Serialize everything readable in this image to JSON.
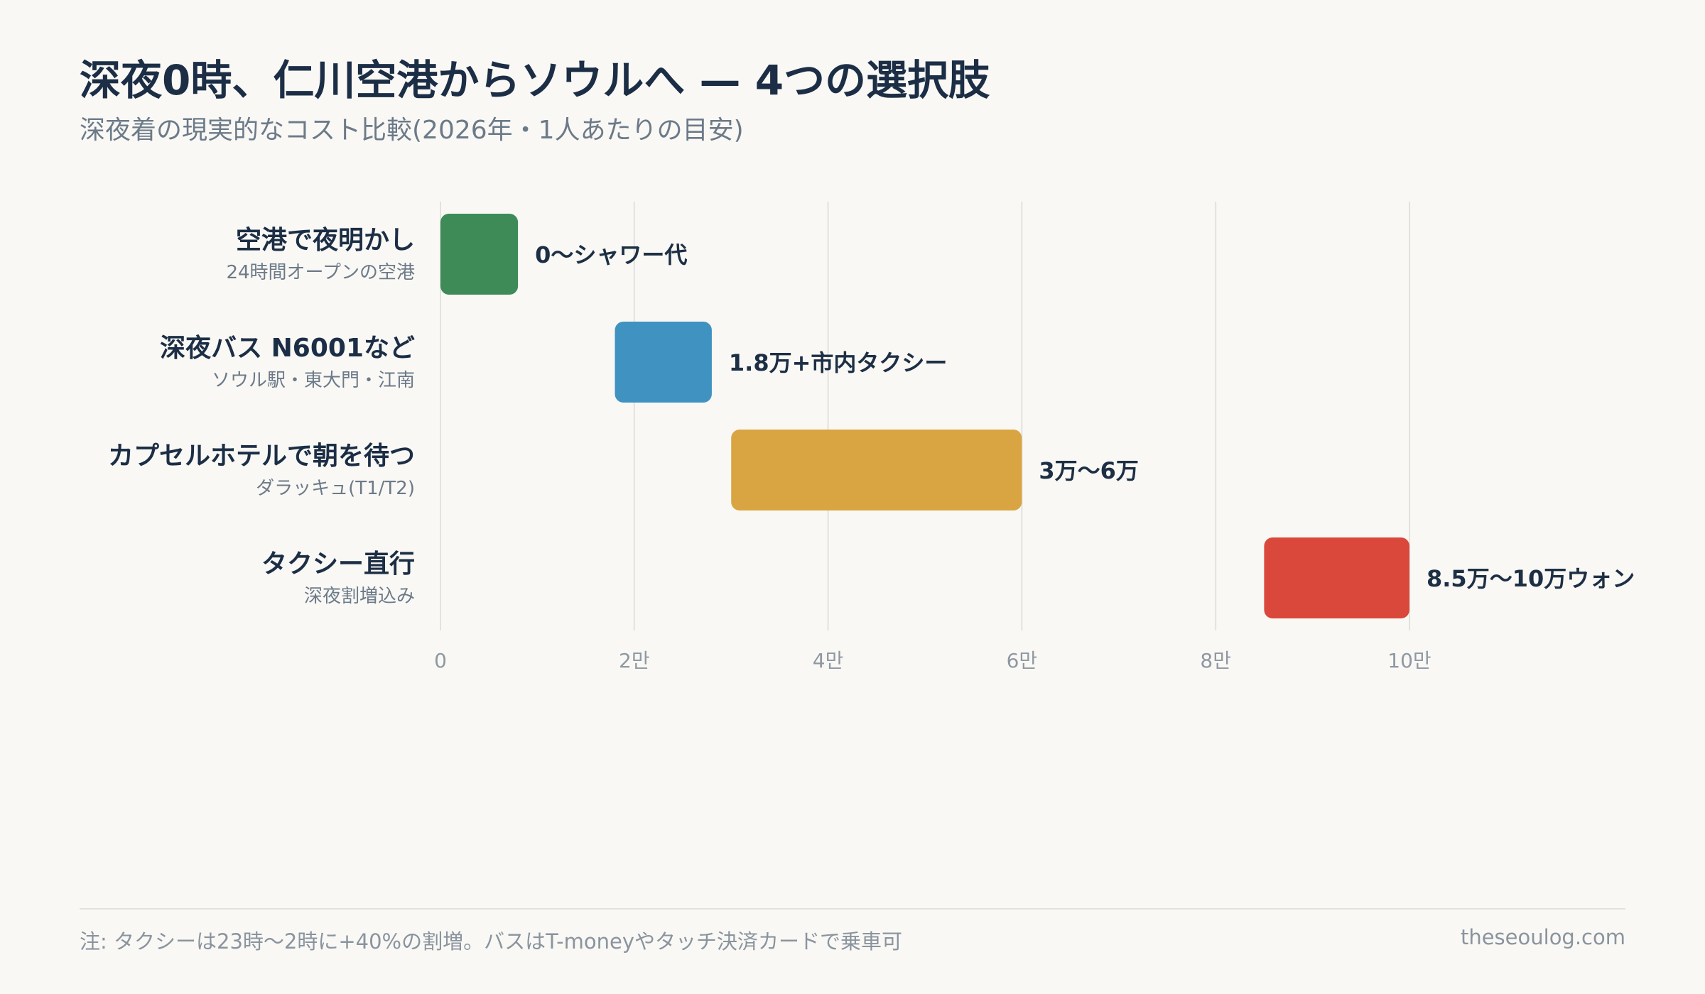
{
  "header": {
    "title": "深夜0時、仁川空港からソウルへ — 4つの選択肢",
    "subtitle": "深夜着の現実的なコスト比較(2026年・1人あたりの目安)"
  },
  "chart_data": {
    "type": "bar",
    "orientation": "horizontal",
    "subtype": "range",
    "categories": [
      "空港で夜明かし",
      "深夜バス N6001など",
      "カプセルホテルで朝を待つ",
      "タクシー直行"
    ],
    "sublabels": [
      "24時間オープンの空港",
      "ソウル駅・東大門・江南",
      "ダラッキュ(T1/T2)",
      "深夜割増込み"
    ],
    "ranges": [
      [
        0,
        8000
      ],
      [
        18000,
        28000
      ],
      [
        30000,
        60000
      ],
      [
        85000,
        100000
      ]
    ],
    "value_labels": [
      "0〜シャワー代",
      "1.8万+市内タクシー",
      "3万〜6万",
      "8.5万〜10万ウォン"
    ],
    "colors": [
      "#3e8b57",
      "#4092c0",
      "#d9a542",
      "#da473b"
    ],
    "xlim": [
      0,
      100000
    ],
    "xticks": [
      0,
      20000,
      40000,
      60000,
      80000,
      100000
    ],
    "xtick_labels": [
      "0",
      "2만",
      "4만",
      "6만",
      "8만",
      "10만"
    ],
    "grid": true
  },
  "footer": {
    "note": "注: タクシーは23時〜2時に+40%の割増。バスはT-moneyやタッチ決済カードで乗車可",
    "site": "theseoulog.com"
  }
}
